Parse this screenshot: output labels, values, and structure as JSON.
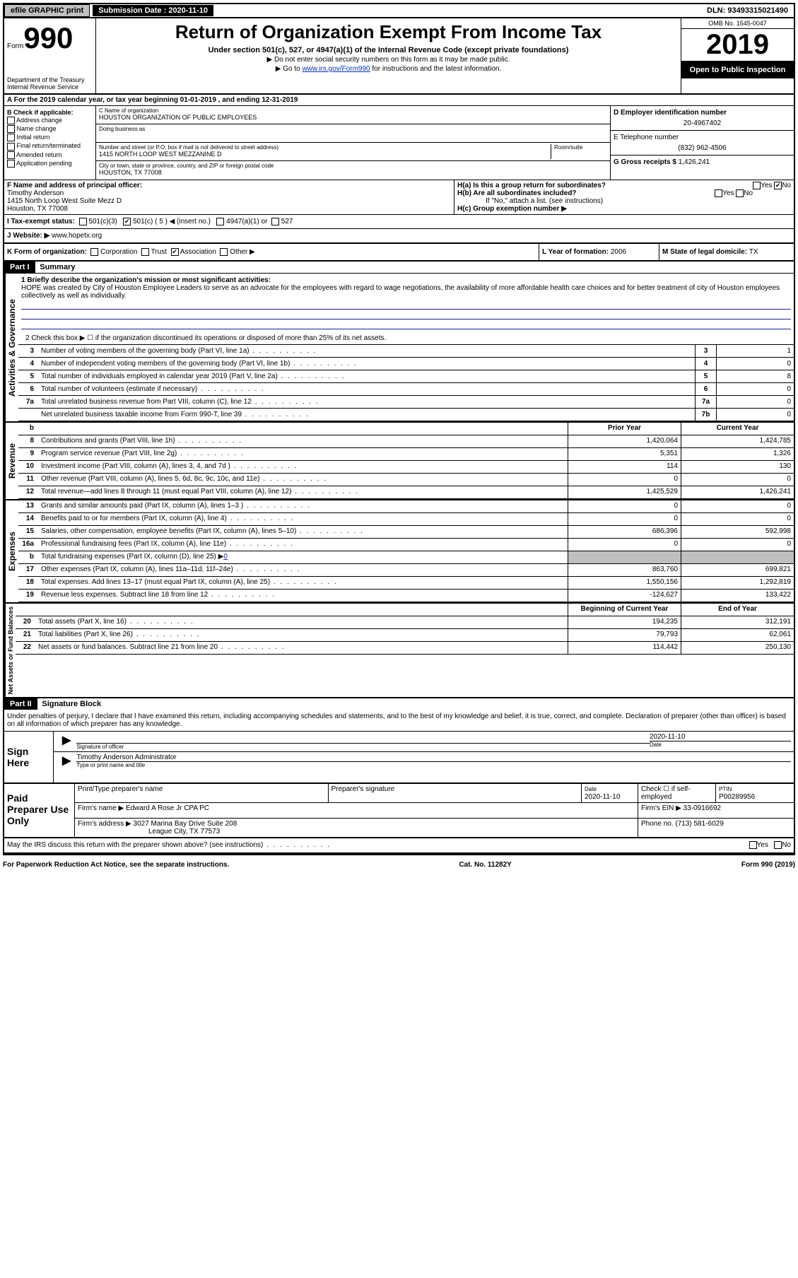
{
  "top": {
    "efile": "efile GRAPHIC print",
    "submission_label": "Submission Date : ",
    "submission_date": "2020-11-10",
    "dln": "DLN: 93493315021490"
  },
  "header": {
    "form_word": "Form",
    "form_num": "990",
    "dept": "Department of the Treasury\nInternal Revenue Service",
    "title": "Return of Organization Exempt From Income Tax",
    "sub1": "Under section 501(c), 527, or 4947(a)(1) of the Internal Revenue Code (except private foundations)",
    "sub2": "▶ Do not enter social security numbers on this form as it may be made public.",
    "sub3a": "▶ Go to ",
    "sub3_link": "www.irs.gov/Form990",
    "sub3b": " for instructions and the latest information.",
    "omb": "OMB No. 1545-0047",
    "year": "2019",
    "inspection": "Open to Public Inspection"
  },
  "line_a": "A For the 2019 calendar year, or tax year beginning 01-01-2019   , and ending 12-31-2019",
  "check": {
    "header": "B Check if applicable:",
    "items": [
      "Address change",
      "Name change",
      "Initial return",
      "Final return/terminated",
      "Amended return",
      "Application pending"
    ]
  },
  "org": {
    "c_label": "C Name of organization",
    "name": "HOUSTON ORGANIZATION OF PUBLIC EMPLOYEES",
    "dba_label": "Doing business as",
    "addr_label": "Number and street (or P.O. box if mail is not delivered to street address)",
    "room_label": "Room/suite",
    "address": "1415 NORTH LOOP WEST MEZZANINE D",
    "city_label": "City or town, state or province, country, and ZIP or foreign postal code",
    "city": "HOUSTON, TX  77008"
  },
  "d": {
    "ein_label": "D Employer identification number",
    "ein": "20-4967402",
    "tel_label": "E Telephone number",
    "tel": "(832) 962-4506",
    "gross_label": "G Gross receipts $ ",
    "gross": "1,426,241"
  },
  "f": {
    "label": "F  Name and address of principal officer:",
    "name": "Timothy Anderson",
    "addr1": "1415 North Loop West Suite Mezz D",
    "addr2": "Houston, TX  77008"
  },
  "h": {
    "a": "H(a)  Is this a group return for subordinates?",
    "a_yes": "Yes",
    "a_no": "No",
    "b": "H(b)  Are all subordinates included?",
    "b_note": "If \"No,\" attach a list. (see instructions)",
    "c": "H(c)  Group exemption number ▶"
  },
  "i": {
    "label": "I  Tax-exempt status:",
    "opt1": "501(c)(3)",
    "opt2": "501(c) ( 5 ) ◀ (insert no.)",
    "opt3": "4947(a)(1) or",
    "opt4": "527"
  },
  "j": {
    "label": "J  Website: ▶",
    "url": "www.hopetx.org"
  },
  "k": {
    "label": "K Form of organization:",
    "opts": [
      "Corporation",
      "Trust",
      "Association",
      "Other ▶"
    ],
    "l_label": "L Year of formation: ",
    "l_val": "2006",
    "m_label": "M State of legal domicile: ",
    "m_val": "TX"
  },
  "part1": {
    "header": "Part I",
    "title": "Summary",
    "line1_label": "1  Briefly describe the organization's mission or most significant activities:",
    "mission": "HOPE was created by City of Houston Employee Leaders to serve as an advocate for the employees with regard to wage negotiations, the availability of more affordable health care choices and for better treatment of city of Houston employees collectively as well as individually.",
    "line2": "2   Check this box ▶ ☐  if the organization discontinued its operations or disposed of more than 25% of its net assets.",
    "lines": [
      {
        "n": "3",
        "d": "Number of voting members of the governing body (Part VI, line 1a)",
        "box": "3",
        "v": "1"
      },
      {
        "n": "4",
        "d": "Number of independent voting members of the governing body (Part VI, line 1b)",
        "box": "4",
        "v": "0"
      },
      {
        "n": "5",
        "d": "Total number of individuals employed in calendar year 2019 (Part V, line 2a)",
        "box": "5",
        "v": "8"
      },
      {
        "n": "6",
        "d": "Total number of volunteers (estimate if necessary)",
        "box": "6",
        "v": "0"
      },
      {
        "n": "7a",
        "d": "Total unrelated business revenue from Part VIII, column (C), line 12",
        "box": "7a",
        "v": "0"
      },
      {
        "n": "",
        "d": "Net unrelated business taxable income from Form 990-T, line 39",
        "box": "7b",
        "v": "0"
      }
    ],
    "col_prior": "Prior Year",
    "col_current": "Current Year",
    "revenue_label": "Revenue",
    "revenue": [
      {
        "n": "8",
        "d": "Contributions and grants (Part VIII, line 1h)",
        "p": "1,420,064",
        "c": "1,424,785"
      },
      {
        "n": "9",
        "d": "Program service revenue (Part VIII, line 2g)",
        "p": "5,351",
        "c": "1,326"
      },
      {
        "n": "10",
        "d": "Investment income (Part VIII, column (A), lines 3, 4, and 7d )",
        "p": "114",
        "c": "130"
      },
      {
        "n": "11",
        "d": "Other revenue (Part VIII, column (A), lines 5, 6d, 8c, 9c, 10c, and 11e)",
        "p": "0",
        "c": "0"
      },
      {
        "n": "12",
        "d": "Total revenue—add lines 8 through 11 (must equal Part VIII, column (A), line 12)",
        "p": "1,425,529",
        "c": "1,426,241"
      }
    ],
    "expenses_label": "Expenses",
    "expenses": [
      {
        "n": "13",
        "d": "Grants and similar amounts paid (Part IX, column (A), lines 1–3 )",
        "p": "0",
        "c": "0"
      },
      {
        "n": "14",
        "d": "Benefits paid to or for members (Part IX, column (A), line 4)",
        "p": "0",
        "c": "0"
      },
      {
        "n": "15",
        "d": "Salaries, other compensation, employee benefits (Part IX, column (A), lines 5–10)",
        "p": "686,396",
        "c": "592,998"
      },
      {
        "n": "16a",
        "d": "Professional fundraising fees (Part IX, column (A), line 11e)",
        "p": "0",
        "c": "0"
      },
      {
        "n": "b",
        "d": "Total fundraising expenses (Part IX, column (D), line 25) ▶0",
        "p": "shaded",
        "c": "shaded"
      },
      {
        "n": "17",
        "d": "Other expenses (Part IX, column (A), lines 11a–11d, 11f–24e)",
        "p": "863,760",
        "c": "699,821"
      },
      {
        "n": "18",
        "d": "Total expenses. Add lines 13–17 (must equal Part IX, column (A), line 25)",
        "p": "1,550,156",
        "c": "1,292,819"
      },
      {
        "n": "19",
        "d": "Revenue less expenses. Subtract line 18 from line 12",
        "p": "-124,627",
        "c": "133,422"
      }
    ],
    "net_label": "Net Assets or Fund Balances",
    "col_begin": "Beginning of Current Year",
    "col_end": "End of Year",
    "net": [
      {
        "n": "20",
        "d": "Total assets (Part X, line 16)",
        "p": "194,235",
        "c": "312,191"
      },
      {
        "n": "21",
        "d": "Total liabilities (Part X, line 26)",
        "p": "79,793",
        "c": "62,061"
      },
      {
        "n": "22",
        "d": "Net assets or fund balances. Subtract line 21 from line 20",
        "p": "114,442",
        "c": "250,130"
      }
    ]
  },
  "part2": {
    "header": "Part II",
    "title": "Signature Block",
    "declare": "Under penalties of perjury, I declare that I have examined this return, including accompanying schedules and statements, and to the best of my knowledge and belief, it is true, correct, and complete. Declaration of preparer (other than officer) is based on all information of which preparer has any knowledge."
  },
  "sign": {
    "label": "Sign Here",
    "sig_label": "Signature of officer",
    "date_label": "Date",
    "date": "2020-11-10",
    "name": "Timothy Anderson  Administrator",
    "name_label": "Type or print name and title"
  },
  "preparer": {
    "label": "Paid Preparer Use Only",
    "print_label": "Print/Type preparer's name",
    "sig_label": "Preparer's signature",
    "date_label": "Date",
    "date": "2020-11-10",
    "check_label": "Check ☐ if self-employed",
    "ptin_label": "PTIN",
    "ptin": "P00289956",
    "firm_name_label": "Firm's name    ▶",
    "firm_name": "Edward A Rose Jr CPA PC",
    "firm_ein_label": "Firm's EIN ▶ ",
    "firm_ein": "33-0916692",
    "firm_addr_label": "Firm's address ▶",
    "firm_addr1": "3027 Marina Bay Drive Suite 208",
    "firm_addr2": "League City, TX  77573",
    "phone_label": "Phone no. ",
    "phone": "(713) 581-6029"
  },
  "discuss": {
    "q": "May the IRS discuss this return with the preparer shown above? (see instructions)",
    "yes": "Yes",
    "no": "No"
  },
  "footer": {
    "left": "For Paperwork Reduction Act Notice, see the separate instructions.",
    "mid": "Cat. No. 11282Y",
    "right": "Form 990 (2019)"
  }
}
